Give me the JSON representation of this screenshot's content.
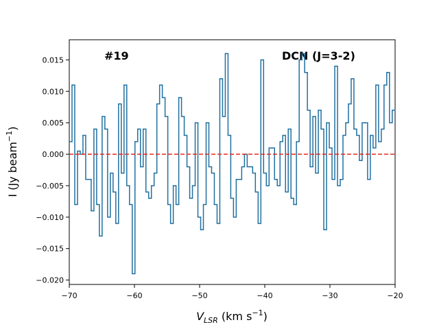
{
  "chart_data": {
    "type": "step",
    "annotations": [
      "#19",
      "DCN (J=3-2)"
    ],
    "xlabel": [
      "V",
      "LSR",
      " (km s",
      "−1",
      ")"
    ],
    "ylabel": [
      "I (Jy beam",
      "−1",
      ")"
    ],
    "series": [
      {
        "color": "#1f6f9f",
        "x": [
          -69.79,
          -69.37,
          -68.95,
          -68.53,
          -68.11,
          -67.69,
          -67.27,
          -66.85,
          -66.43,
          -66.01,
          -65.59,
          -65.17,
          -64.75,
          -64.33,
          -63.91,
          -63.49,
          -63.07,
          -62.65,
          -62.23,
          -61.81,
          -61.39,
          -60.97,
          -60.55,
          -60.13,
          -59.71,
          -59.29,
          -58.87,
          -58.45,
          -58.03,
          -57.61,
          -57.19,
          -56.77,
          -56.35,
          -55.93,
          -55.51,
          -55.09,
          -54.67,
          -54.25,
          -53.83,
          -53.41,
          -52.99,
          -52.57,
          -52.15,
          -51.73,
          -51.31,
          -50.89,
          -50.47,
          -50.05,
          -49.63,
          -49.21,
          -48.79,
          -48.37,
          -47.95,
          -47.53,
          -47.11,
          -46.69,
          -46.27,
          -45.85,
          -45.43,
          -45.01,
          -44.59,
          -44.17,
          -43.75,
          -43.33,
          -42.91,
          -42.49,
          -42.07,
          -41.65,
          -41.23,
          -40.81,
          -40.39,
          -39.97,
          -39.55,
          -39.13,
          -38.71,
          -38.29,
          -37.87,
          -37.45,
          -37.03,
          -36.61,
          -36.19,
          -35.77,
          -35.35,
          -34.93,
          -34.51,
          -34.09,
          -33.67,
          -33.25,
          -32.83,
          -32.41,
          -31.99,
          -31.57,
          -31.15,
          -30.73,
          -30.31,
          -29.89,
          -29.47,
          -29.05,
          -28.63,
          -28.21,
          -27.79,
          -27.37,
          -26.95,
          -26.53,
          -26.11,
          -25.69,
          -25.27,
          -24.85,
          -24.43,
          -24.01,
          -23.59,
          -23.17,
          -22.75,
          -22.33,
          -21.91,
          -21.49,
          -21.07,
          -20.65,
          -20.23
        ],
        "values": [
          0.002,
          0.011,
          -0.008,
          0.0005,
          0,
          0.003,
          -0.004,
          -0.004,
          -0.009,
          0.004,
          -0.008,
          -0.013,
          0.006,
          0.004,
          -0.01,
          -0.003,
          -0.006,
          -0.011,
          0.008,
          -0.003,
          0.011,
          -0.005,
          -0.008,
          -0.019,
          0.002,
          0.004,
          -0.002,
          0.004,
          -0.006,
          -0.007,
          -0.005,
          -0.003,
          0.008,
          0.011,
          0.009,
          0.006,
          -0.008,
          -0.011,
          -0.005,
          -0.008,
          0.009,
          0.006,
          0.003,
          -0.002,
          -0.007,
          -0.005,
          0.005,
          -0.01,
          -0.012,
          -0.008,
          0.005,
          -0.002,
          -0.003,
          -0.008,
          -0.011,
          0.012,
          0.006,
          0.016,
          0.003,
          -0.007,
          -0.01,
          -0.004,
          -0.004,
          -0.002,
          0,
          -0.002,
          -0.002,
          -0.003,
          -0.006,
          -0.011,
          0.015,
          -0.003,
          -0.005,
          0.001,
          0.001,
          -0.004,
          -0.005,
          0.002,
          0.003,
          -0.006,
          0.004,
          -0.007,
          -0.008,
          0.002,
          0.015,
          0.016,
          0.013,
          0.007,
          -0.002,
          0.006,
          -0.003,
          0.007,
          0.004,
          -0.012,
          0.005,
          0.001,
          -0.004,
          0.014,
          -0.005,
          -0.004,
          0.003,
          0.005,
          0.008,
          0.012,
          0.004,
          0.003,
          -0.001,
          0.005,
          0.005,
          -0.004,
          0.003,
          0.001,
          0.011,
          0.002,
          0.004,
          0.011,
          0.013,
          0.005,
          0.007
        ]
      }
    ],
    "hline": {
      "value": 0,
      "color": "#e8261c"
    },
    "xlim": [
      -70,
      -20
    ],
    "xticks": [
      {
        "value": -70,
        "label": "−70"
      },
      {
        "value": -60,
        "label": "−60"
      },
      {
        "value": -50,
        "label": "−50"
      },
      {
        "value": -40,
        "label": "−40"
      },
      {
        "value": -30,
        "label": "−30"
      },
      {
        "value": -20,
        "label": "−20"
      }
    ],
    "ylim": [
      -0.0207,
      0.0182
    ],
    "yticks": [
      {
        "value": -0.02,
        "label": "−0.020"
      },
      {
        "value": -0.015,
        "label": "−0.015"
      },
      {
        "value": -0.01,
        "label": "−0.010"
      },
      {
        "value": -0.005,
        "label": "−0.005"
      },
      {
        "value": 0,
        "label": "0.000"
      },
      {
        "value": 0.005,
        "label": "0.005"
      },
      {
        "value": 0.01,
        "label": "0.010"
      },
      {
        "value": 0.015,
        "label": "0.015"
      }
    ]
  }
}
